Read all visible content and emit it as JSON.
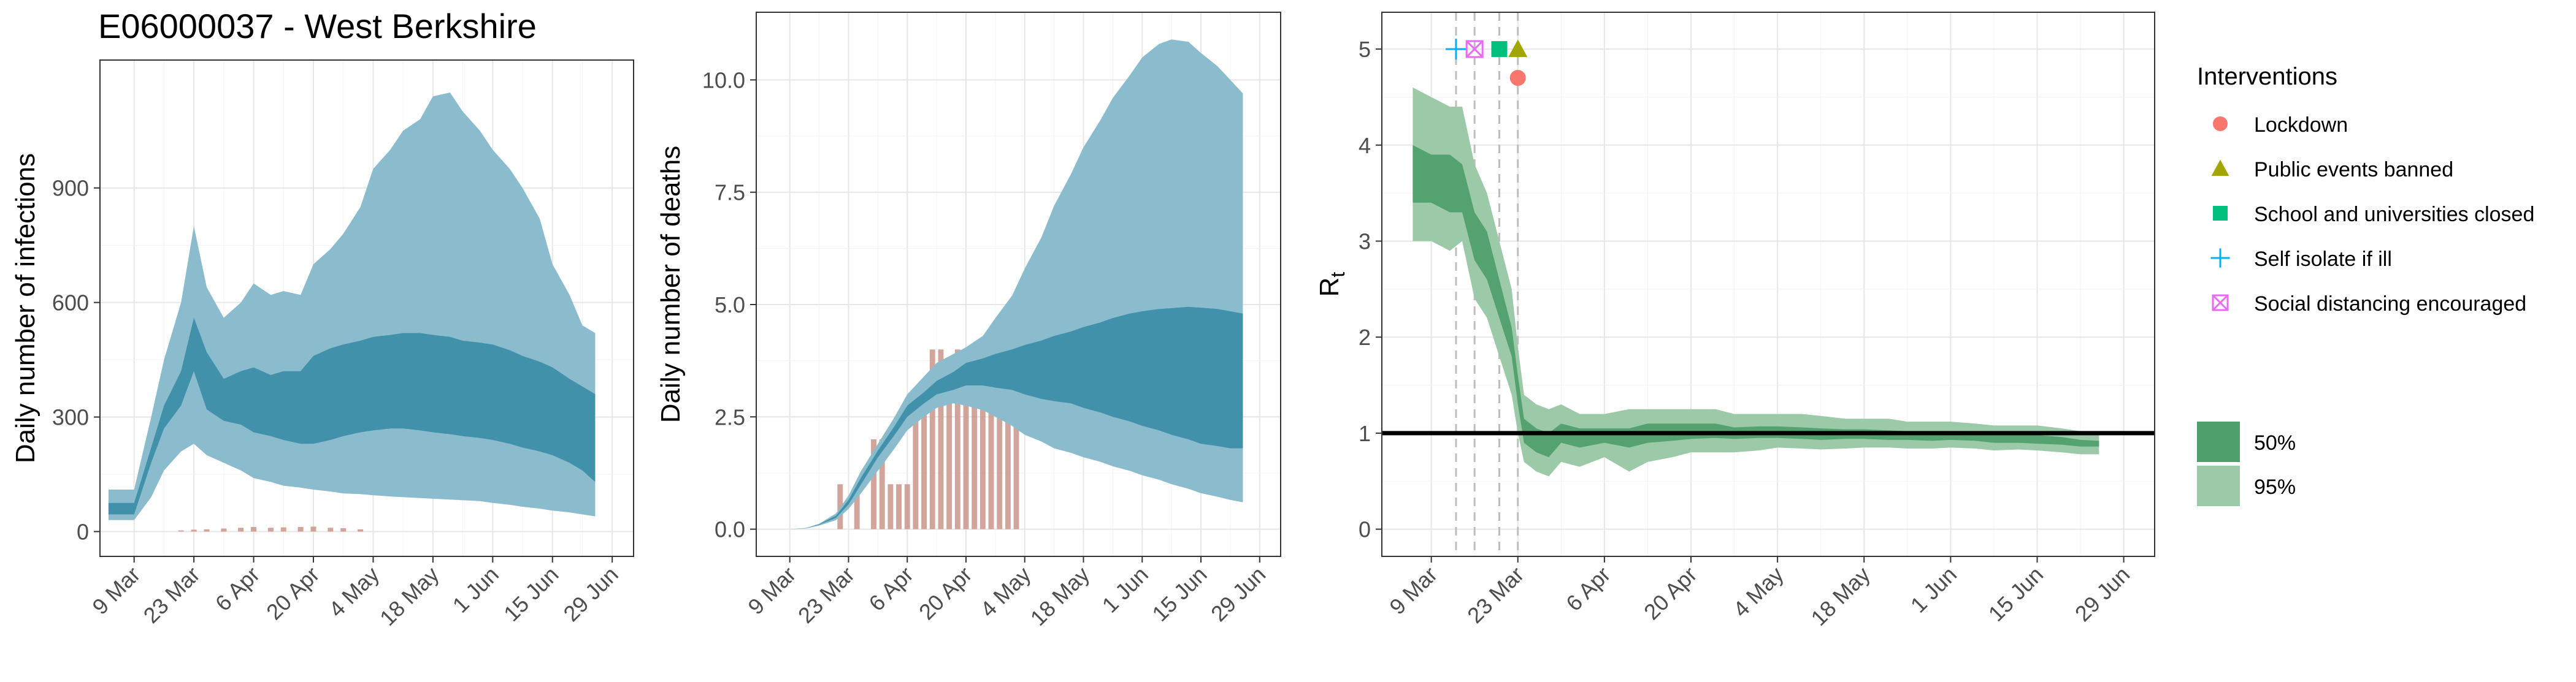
{
  "figure": {
    "title": "E06000037 - West Berkshire"
  },
  "colors": {
    "infections_95": "#8bbccd",
    "infections_50": "#3e8ea9",
    "deaths_observed": "#c9958b",
    "rt_95": "#9ccaa9",
    "rt_50": "#4f9f6d",
    "reference_line": "#000000",
    "lockdown": "#f8766d",
    "public_events": "#a3a500",
    "schools": "#00bf7d",
    "self_isolate": "#00b0f6",
    "social_distancing": "#e76bf3"
  },
  "legend": {
    "title": "Interventions",
    "items": [
      {
        "label": "Lockdown",
        "icon": "circle",
        "color": "#f8766d"
      },
      {
        "label": "Public events banned",
        "icon": "triangle",
        "color": "#a3a500"
      },
      {
        "label": "School and universities closed",
        "icon": "square",
        "color": "#00bf7d"
      },
      {
        "label": "Self isolate if ill",
        "icon": "plus",
        "color": "#00b0f6"
      },
      {
        "label": "Social distancing encouraged",
        "icon": "boxed-x",
        "color": "#e76bf3"
      }
    ],
    "bands": [
      {
        "label": "50%",
        "color": "#4f9f6d"
      },
      {
        "label": "95%",
        "color": "#9ccaa9"
      }
    ]
  },
  "chart_data": [
    {
      "type": "area",
      "title": "E06000037 - West Berkshire",
      "xlabel": "",
      "ylabel": "Daily number of infections",
      "x_ticks": [
        "9 Mar",
        "23 Mar",
        "6 Apr",
        "20 Apr",
        "4 May",
        "18 May",
        "1 Jun",
        "15 Jun",
        "29 Jun"
      ],
      "y_ticks": [
        0,
        300,
        600,
        900
      ],
      "ylim": [
        0,
        1170
      ],
      "grid": true,
      "series": [
        {
          "name": "95%",
          "x": [
            "3 Mar",
            "9 Mar",
            "13 Mar",
            "16 Mar",
            "20 Mar",
            "23 Mar",
            "26 Mar",
            "30 Mar",
            "3 Apr",
            "6 Apr",
            "10 Apr",
            "13 Apr",
            "17 Apr",
            "20 Apr",
            "24 Apr",
            "27 Apr",
            "1 May",
            "4 May",
            "8 May",
            "11 May",
            "15 May",
            "18 May",
            "22 May",
            "25 May",
            "29 May",
            "1 Jun",
            "5 Jun",
            "8 Jun",
            "12 Jun",
            "15 Jun",
            "19 Jun",
            "22 Jun",
            "25 Jun"
          ],
          "lower": [
            30,
            30,
            90,
            160,
            210,
            230,
            200,
            180,
            160,
            140,
            130,
            120,
            115,
            110,
            105,
            100,
            98,
            95,
            92,
            90,
            88,
            86,
            84,
            82,
            80,
            75,
            70,
            65,
            60,
            55,
            50,
            45,
            40
          ],
          "upper": [
            110,
            110,
            300,
            450,
            600,
            800,
            640,
            560,
            600,
            650,
            620,
            630,
            620,
            700,
            740,
            780,
            850,
            950,
            1000,
            1050,
            1080,
            1140,
            1150,
            1100,
            1050,
            1000,
            950,
            900,
            820,
            700,
            620,
            540,
            520
          ]
        },
        {
          "name": "50%",
          "x": [
            "3 Mar",
            "9 Mar",
            "13 Mar",
            "16 Mar",
            "20 Mar",
            "23 Mar",
            "26 Mar",
            "30 Mar",
            "3 Apr",
            "6 Apr",
            "10 Apr",
            "13 Apr",
            "17 Apr",
            "20 Apr",
            "24 Apr",
            "27 Apr",
            "1 May",
            "4 May",
            "8 May",
            "11 May",
            "15 May",
            "18 May",
            "22 May",
            "25 May",
            "29 May",
            "1 Jun",
            "5 Jun",
            "8 Jun",
            "12 Jun",
            "15 Jun",
            "19 Jun",
            "22 Jun",
            "25 Jun"
          ],
          "lower": [
            45,
            45,
            180,
            270,
            330,
            420,
            320,
            290,
            280,
            260,
            250,
            240,
            230,
            230,
            240,
            250,
            260,
            265,
            270,
            270,
            265,
            260,
            255,
            250,
            245,
            240,
            230,
            220,
            210,
            200,
            180,
            160,
            130
          ],
          "upper": [
            75,
            75,
            220,
            330,
            420,
            560,
            470,
            400,
            420,
            430,
            410,
            420,
            420,
            460,
            480,
            490,
            500,
            510,
            515,
            520,
            520,
            515,
            510,
            500,
            495,
            490,
            475,
            460,
            445,
            430,
            400,
            380,
            360
          ]
        }
      ],
      "observed_bars": {
        "x": [
          "20 Mar",
          "23 Mar",
          "26 Mar",
          "30 Mar",
          "3 Apr",
          "6 Apr",
          "10 Apr",
          "13 Apr",
          "17 Apr",
          "20 Apr",
          "24 Apr",
          "27 Apr",
          "1 May"
        ],
        "values": [
          3,
          5,
          6,
          8,
          10,
          12,
          10,
          11,
          12,
          13,
          10,
          9,
          6
        ]
      }
    },
    {
      "type": "area",
      "title": "",
      "xlabel": "",
      "ylabel": "Daily number of deaths",
      "x_ticks": [
        "9 Mar",
        "23 Mar",
        "6 Apr",
        "20 Apr",
        "4 May",
        "18 May",
        "1 Jun",
        "15 Jun",
        "29 Jun"
      ],
      "y_ticks": [
        0.0,
        2.5,
        5.0,
        7.5,
        10.0
      ],
      "y_tick_labels": [
        "0.0",
        "2.5",
        "5.0",
        "7.5",
        "10.0"
      ],
      "ylim": [
        0,
        10.9
      ],
      "grid": true,
      "series": [
        {
          "name": "95%",
          "x": [
            "3 Mar",
            "9 Mar",
            "13 Mar",
            "16 Mar",
            "20 Mar",
            "23 Mar",
            "26 Mar",
            "30 Mar",
            "3 Apr",
            "6 Apr",
            "10 Apr",
            "13 Apr",
            "17 Apr",
            "20 Apr",
            "24 Apr",
            "27 Apr",
            "1 May",
            "4 May",
            "8 May",
            "11 May",
            "15 May",
            "18 May",
            "22 May",
            "25 May",
            "29 May",
            "1 Jun",
            "5 Jun",
            "8 Jun",
            "12 Jun",
            "15 Jun",
            "19 Jun",
            "22 Jun",
            "25 Jun"
          ],
          "lower": [
            0,
            0,
            0.02,
            0.08,
            0.2,
            0.45,
            0.8,
            1.3,
            1.8,
            2.2,
            2.5,
            2.7,
            2.8,
            2.75,
            2.65,
            2.5,
            2.3,
            2.1,
            1.95,
            1.8,
            1.7,
            1.6,
            1.5,
            1.4,
            1.3,
            1.2,
            1.1,
            1.0,
            0.9,
            0.8,
            0.72,
            0.65,
            0.6
          ],
          "upper": [
            0,
            0,
            0.03,
            0.12,
            0.35,
            0.75,
            1.3,
            1.9,
            2.5,
            3.0,
            3.4,
            3.7,
            3.9,
            4.05,
            4.3,
            4.7,
            5.2,
            5.8,
            6.5,
            7.2,
            7.9,
            8.5,
            9.1,
            9.6,
            10.1,
            10.5,
            10.8,
            10.9,
            10.85,
            10.6,
            10.3,
            10.0,
            9.7
          ]
        },
        {
          "name": "50%",
          "x": [
            "3 Mar",
            "9 Mar",
            "13 Mar",
            "16 Mar",
            "20 Mar",
            "23 Mar",
            "26 Mar",
            "30 Mar",
            "3 Apr",
            "6 Apr",
            "10 Apr",
            "13 Apr",
            "17 Apr",
            "20 Apr",
            "24 Apr",
            "27 Apr",
            "1 May",
            "4 May",
            "8 May",
            "11 May",
            "15 May",
            "18 May",
            "22 May",
            "25 May",
            "29 May",
            "1 Jun",
            "5 Jun",
            "8 Jun",
            "12 Jun",
            "15 Jun",
            "19 Jun",
            "22 Jun",
            "25 Jun"
          ],
          "lower": [
            0,
            0,
            0.02,
            0.1,
            0.25,
            0.55,
            1.0,
            1.6,
            2.1,
            2.5,
            2.8,
            3.0,
            3.1,
            3.2,
            3.2,
            3.15,
            3.1,
            3.0,
            2.9,
            2.85,
            2.8,
            2.7,
            2.6,
            2.5,
            2.4,
            2.3,
            2.2,
            2.1,
            2.0,
            1.9,
            1.85,
            1.8,
            1.8
          ],
          "upper": [
            0,
            0,
            0.025,
            0.11,
            0.3,
            0.65,
            1.15,
            1.75,
            2.3,
            2.75,
            3.05,
            3.3,
            3.5,
            3.7,
            3.8,
            3.9,
            4.0,
            4.1,
            4.2,
            4.3,
            4.4,
            4.5,
            4.6,
            4.7,
            4.8,
            4.85,
            4.9,
            4.92,
            4.95,
            4.93,
            4.9,
            4.85,
            4.8
          ]
        }
      ],
      "observed_bars": {
        "x": [
          "21 Mar",
          "23 Mar",
          "25 Mar",
          "27 Mar",
          "29 Mar",
          "31 Mar",
          "2 Apr",
          "4 Apr",
          "6 Apr",
          "8 Apr",
          "10 Apr",
          "12 Apr",
          "14 Apr",
          "16 Apr",
          "18 Apr",
          "20 Apr",
          "22 Apr",
          "24 Apr",
          "26 Apr",
          "28 Apr",
          "30 Apr",
          "2 May"
        ],
        "values": [
          1,
          0,
          1,
          0,
          2,
          2,
          1,
          1,
          1,
          3,
          3,
          4,
          4,
          3,
          4,
          4,
          3,
          3,
          4,
          4,
          4,
          5
        ]
      }
    },
    {
      "type": "area",
      "title": "",
      "xlabel": "",
      "ylabel": "Rt",
      "x_ticks": [
        "9 Mar",
        "23 Mar",
        "6 Apr",
        "20 Apr",
        "4 May",
        "18 May",
        "1 Jun",
        "15 Jun",
        "29 Jun"
      ],
      "y_ticks": [
        0,
        1,
        2,
        3,
        4,
        5
      ],
      "ylim": [
        0,
        5.1
      ],
      "grid": true,
      "reference_line": 1,
      "series": [
        {
          "name": "95%",
          "x": [
            "6 Mar",
            "9 Mar",
            "12 Mar",
            "14 Mar",
            "16 Mar",
            "18 Mar",
            "20 Mar",
            "22 Mar",
            "23 Mar",
            "24 Mar",
            "26 Mar",
            "28 Mar",
            "30 Mar",
            "2 Apr",
            "6 Apr",
            "10 Apr",
            "13 Apr",
            "17 Apr",
            "20 Apr",
            "24 Apr",
            "27 Apr",
            "1 May",
            "4 May",
            "8 May",
            "11 May",
            "15 May",
            "18 May",
            "22 May",
            "25 May",
            "29 May",
            "1 Jun",
            "5 Jun",
            "8 Jun",
            "12 Jun",
            "15 Jun",
            "19 Jun",
            "22 Jun",
            "25 Jun"
          ],
          "lower": [
            3.0,
            3.0,
            2.9,
            3.0,
            2.4,
            2.2,
            1.8,
            1.4,
            1.0,
            0.7,
            0.6,
            0.55,
            0.7,
            0.65,
            0.75,
            0.6,
            0.7,
            0.75,
            0.8,
            0.8,
            0.8,
            0.82,
            0.85,
            0.84,
            0.83,
            0.84,
            0.85,
            0.85,
            0.84,
            0.84,
            0.85,
            0.84,
            0.82,
            0.83,
            0.82,
            0.8,
            0.78,
            0.78
          ],
          "upper": [
            4.6,
            4.5,
            4.4,
            4.4,
            3.8,
            3.5,
            3.0,
            2.5,
            1.9,
            1.4,
            1.3,
            1.25,
            1.3,
            1.2,
            1.2,
            1.25,
            1.25,
            1.25,
            1.25,
            1.25,
            1.2,
            1.2,
            1.2,
            1.2,
            1.18,
            1.15,
            1.15,
            1.15,
            1.12,
            1.12,
            1.12,
            1.1,
            1.08,
            1.08,
            1.08,
            1.05,
            1.02,
            1.0
          ]
        },
        {
          "name": "50%",
          "x": [
            "6 Mar",
            "9 Mar",
            "12 Mar",
            "14 Mar",
            "16 Mar",
            "18 Mar",
            "20 Mar",
            "22 Mar",
            "23 Mar",
            "24 Mar",
            "26 Mar",
            "28 Mar",
            "30 Mar",
            "2 Apr",
            "6 Apr",
            "10 Apr",
            "13 Apr",
            "17 Apr",
            "20 Apr",
            "24 Apr",
            "27 Apr",
            "1 May",
            "4 May",
            "8 May",
            "11 May",
            "15 May",
            "18 May",
            "22 May",
            "25 May",
            "29 May",
            "1 Jun",
            "5 Jun",
            "8 Jun",
            "12 Jun",
            "15 Jun",
            "19 Jun",
            "22 Jun",
            "25 Jun"
          ],
          "lower": [
            3.4,
            3.4,
            3.3,
            3.3,
            2.8,
            2.6,
            2.2,
            1.8,
            1.3,
            0.9,
            0.8,
            0.75,
            0.9,
            0.85,
            0.9,
            0.85,
            0.9,
            0.92,
            0.94,
            0.95,
            0.94,
            0.95,
            0.95,
            0.94,
            0.93,
            0.94,
            0.94,
            0.93,
            0.93,
            0.92,
            0.93,
            0.92,
            0.9,
            0.9,
            0.89,
            0.88,
            0.86,
            0.86
          ],
          "upper": [
            4.0,
            3.9,
            3.9,
            3.8,
            3.3,
            3.1,
            2.6,
            2.1,
            1.6,
            1.15,
            1.05,
            1.0,
            1.1,
            1.05,
            1.05,
            1.05,
            1.1,
            1.1,
            1.1,
            1.1,
            1.06,
            1.07,
            1.07,
            1.06,
            1.05,
            1.04,
            1.04,
            1.03,
            1.02,
            1.02,
            1.02,
            1.0,
            0.99,
            0.99,
            0.98,
            0.96,
            0.93,
            0.92
          ]
        }
      ],
      "interventions": [
        {
          "name": "Self isolate if ill",
          "date": "13 Mar",
          "icon": "plus",
          "color": "#00b0f6",
          "y": 5
        },
        {
          "name": "Social distancing encouraged",
          "date": "16 Mar",
          "icon": "boxed-x",
          "color": "#e76bf3",
          "y": 5
        },
        {
          "name": "School and universities closed",
          "date": "20 Mar",
          "icon": "square",
          "color": "#00bf7d",
          "y": 5
        },
        {
          "name": "Public events banned",
          "date": "23 Mar",
          "icon": "triangle",
          "color": "#a3a500",
          "y": 5
        },
        {
          "name": "Lockdown",
          "date": "23 Mar",
          "icon": "circle",
          "color": "#f8766d",
          "y": 4.7
        }
      ]
    }
  ]
}
